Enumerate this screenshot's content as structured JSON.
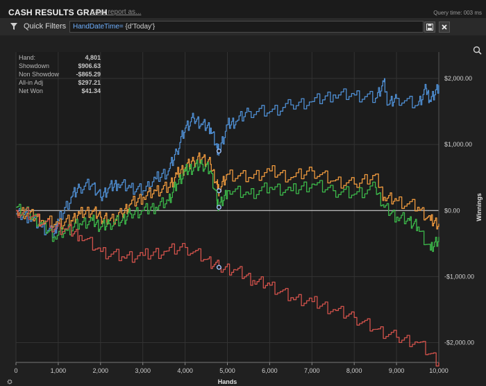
{
  "header": {
    "title": "CASH RESULTS GRAPH",
    "save_link": "Save report as...",
    "query_time": "Query time: 003 ms"
  },
  "filters": {
    "label": "Quick Filters",
    "expression_key": "HandDateTime=",
    "expression_value": " {d'Today'}"
  },
  "icons": {
    "filter": "filter-funnel-icon",
    "save": "floppy-disk-icon",
    "close": "close-x-icon",
    "zoom": "magnifier-icon",
    "settings": "gear-icon"
  },
  "stats": [
    {
      "label": "Hand:",
      "value": "4,801"
    },
    {
      "label": "Showdown",
      "value": "$906.63"
    },
    {
      "label": "Non Showdow",
      "value": "-$865.29"
    },
    {
      "label": "All-in Adj",
      "value": "$297.21"
    },
    {
      "label": "Net Won",
      "value": "$41.34"
    }
  ],
  "chart_data": {
    "type": "line",
    "xlabel": "Hands",
    "ylabel": "Winnings",
    "xlim": [
      0,
      10000
    ],
    "ylim": [
      -2300,
      2400
    ],
    "x_ticks": [
      "0",
      "1,000",
      "2,000",
      "3,000",
      "4,000",
      "5,000",
      "6,000",
      "7,000",
      "8,000",
      "9,000",
      "10,000"
    ],
    "y_ticks": [
      {
        "value": 2000,
        "label": "$2,000.00"
      },
      {
        "value": 1000,
        "label": "$1,000.00"
      },
      {
        "value": 0,
        "label": "$0.00"
      },
      {
        "value": -1000,
        "label": "-$1,000.00"
      },
      {
        "value": -2000,
        "label": "-$2,000.00"
      }
    ],
    "grid": true,
    "cursor_hand": 4801,
    "series": [
      {
        "color": "#4f8fd4",
        "x": [
          0,
          300,
          600,
          900,
          1000,
          1300,
          1500,
          1800,
          2000,
          2200,
          2400,
          2700,
          3000,
          3300,
          3600,
          3800,
          4000,
          4200,
          4400,
          4600,
          4750,
          4801,
          5000,
          5200,
          5500,
          6000,
          6500,
          7000,
          7500,
          8000,
          8500,
          8700,
          8800,
          9000,
          9500,
          9700,
          9800,
          10000
        ],
        "y": [
          -50,
          -100,
          -250,
          -350,
          -150,
          200,
          350,
          400,
          200,
          350,
          400,
          350,
          300,
          480,
          600,
          900,
          1250,
          1400,
          1300,
          1250,
          950,
          900,
          1300,
          1350,
          1500,
          1500,
          1600,
          1650,
          1750,
          1750,
          1700,
          1950,
          1600,
          1700,
          1600,
          1850,
          1650,
          1900
        ]
      },
      {
        "color": "#f09a3e",
        "x": [
          0,
          300,
          600,
          1000,
          1300,
          1500,
          1800,
          2000,
          2200,
          2500,
          2700,
          3000,
          3300,
          3600,
          3800,
          4000,
          4200,
          4400,
          4600,
          4750,
          4801,
          5000,
          5500,
          6000,
          6500,
          7000,
          7500,
          8000,
          8500,
          8700,
          9000,
          9500,
          9800,
          10000
        ],
        "y": [
          0,
          -50,
          -150,
          -200,
          -150,
          -50,
          0,
          -100,
          -150,
          -50,
          100,
          200,
          300,
          350,
          550,
          650,
          750,
          800,
          700,
          400,
          300,
          550,
          500,
          600,
          500,
          600,
          450,
          400,
          550,
          200,
          150,
          50,
          -150,
          -200
        ]
      },
      {
        "color": "#3cb84a",
        "x": [
          0,
          300,
          600,
          900,
          1200,
          1500,
          1800,
          2000,
          2200,
          2500,
          2700,
          3000,
          3300,
          3600,
          3800,
          4000,
          4200,
          4400,
          4600,
          4750,
          4801,
          5000,
          5500,
          6000,
          6500,
          7000,
          7500,
          8000,
          8500,
          8700,
          9000,
          9300,
          9500,
          9800,
          10000
        ],
        "y": [
          50,
          -50,
          -200,
          -400,
          -300,
          -200,
          -150,
          -250,
          -200,
          -150,
          -50,
          0,
          50,
          150,
          400,
          600,
          650,
          700,
          600,
          150,
          50,
          300,
          250,
          350,
          300,
          400,
          300,
          250,
          350,
          50,
          -100,
          -150,
          -250,
          -600,
          -400
        ]
      },
      {
        "color": "#d2524b",
        "x": [
          0,
          400,
          800,
          1200,
          1500,
          2000,
          2500,
          3000,
          3500,
          4000,
          4500,
          4801,
          5200,
          5600,
          6000,
          6500,
          7000,
          7500,
          8000,
          8500,
          9000,
          9500,
          10000
        ],
        "y": [
          0,
          -80,
          -250,
          -280,
          -380,
          -620,
          -700,
          -680,
          -620,
          -560,
          -740,
          -860,
          -900,
          -1060,
          -1130,
          -1320,
          -1380,
          -1500,
          -1620,
          -1800,
          -1920,
          -2000,
          -2300
        ]
      }
    ]
  }
}
